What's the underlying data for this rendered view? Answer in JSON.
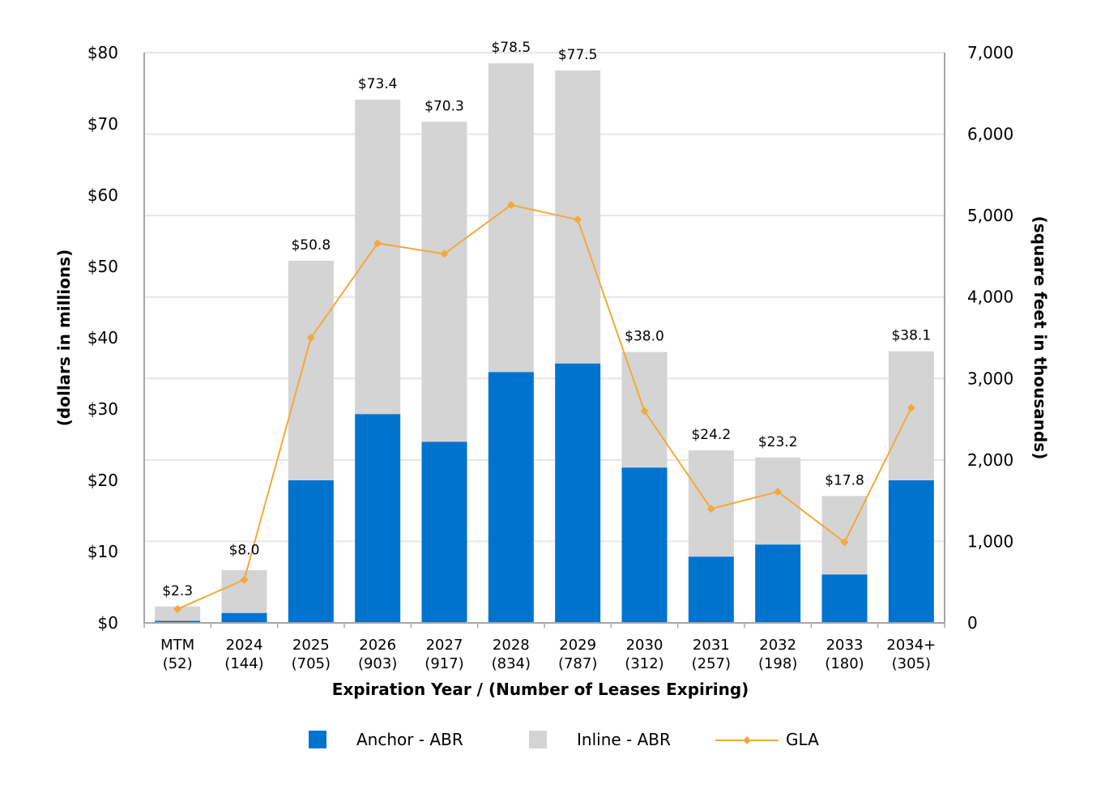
{
  "chart_data": {
    "type": "bar",
    "stacked": true,
    "categories": [
      "MTM",
      "2024",
      "2025",
      "2026",
      "2027",
      "2028",
      "2029",
      "2030",
      "2031",
      "2032",
      "2033",
      "2034+"
    ],
    "category_counts": [
      "(52)",
      "(144)",
      "(705)",
      "(903)",
      "(917)",
      "(834)",
      "(787)",
      "(312)",
      "(257)",
      "(198)",
      "(180)",
      "(305)"
    ],
    "series": [
      {
        "name": "Anchor - ABR",
        "axis": "left",
        "kind": "bar",
        "color": "#0073cf",
        "values": [
          0.3,
          1.4,
          20.0,
          29.3,
          25.4,
          35.2,
          36.4,
          21.8,
          9.3,
          11.0,
          6.8,
          20.0
        ]
      },
      {
        "name": "Inline - ABR",
        "axis": "left",
        "kind": "bar",
        "color": "#d4d4d4",
        "values": [
          2.0,
          6.0,
          30.8,
          44.1,
          44.9,
          43.3,
          41.1,
          16.2,
          14.9,
          12.2,
          11.0,
          18.1
        ]
      },
      {
        "name": "GLA",
        "axis": "right",
        "kind": "line",
        "color": "#f2a93b",
        "values": [
          170,
          530,
          3500,
          4660,
          4530,
          5130,
          4950,
          2600,
          1400,
          1610,
          990,
          2640
        ]
      }
    ],
    "totals_labels": [
      "$2.3",
      "$8.0",
      "$50.8",
      "$73.4",
      "$70.3",
      "$78.5",
      "$77.5",
      "$38.0",
      "$24.2",
      "$23.2",
      "$17.8",
      "$38.1"
    ],
    "totals_values": [
      2.3,
      8.0,
      50.8,
      73.4,
      70.3,
      78.5,
      77.5,
      38.0,
      24.2,
      23.2,
      17.8,
      38.1
    ],
    "title": "",
    "xlabel": "Expiration Year / (Number of Leases Expiring)",
    "ylabel": "(dollars in millions)",
    "y2label": "(square feet in thousands)",
    "ylim": [
      0,
      80
    ],
    "y2lim": [
      0,
      7000
    ],
    "yticks": [
      0,
      10,
      20,
      30,
      40,
      50,
      60,
      70,
      80
    ],
    "ytick_labels": [
      "$0",
      "$10",
      "$20",
      "$30",
      "$40",
      "$50",
      "$60",
      "$70",
      "$80"
    ],
    "y2ticks": [
      0,
      1000,
      2000,
      3000,
      4000,
      5000,
      6000,
      7000
    ],
    "y2tick_labels": [
      "0",
      "1,000",
      "2,000",
      "3,000",
      "4,000",
      "5,000",
      "6,000",
      "7,000"
    ],
    "grid": true,
    "legend_position": "bottom",
    "colors": {
      "grid": "#e6e6e6",
      "axis": "#a6a6a6",
      "marker": "#f2a93b"
    }
  }
}
